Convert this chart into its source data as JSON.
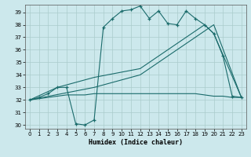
{
  "xlabel": "Humidex (Indice chaleur)",
  "bg_color": "#cce8ec",
  "grid_color": "#aacccc",
  "line_color": "#1a6b6b",
  "xlim": [
    -0.5,
    23.5
  ],
  "ylim": [
    29.7,
    39.6
  ],
  "yticks": [
    30,
    31,
    32,
    33,
    34,
    35,
    36,
    37,
    38,
    39
  ],
  "xticks": [
    0,
    1,
    2,
    3,
    4,
    5,
    6,
    7,
    8,
    9,
    10,
    11,
    12,
    13,
    14,
    15,
    16,
    17,
    18,
    19,
    20,
    21,
    22,
    23
  ],
  "s1_x": [
    0,
    1,
    2,
    3,
    4,
    5,
    6,
    7,
    8,
    9,
    10,
    11,
    12,
    13,
    14,
    15,
    16,
    17,
    18,
    19,
    20,
    21,
    22,
    23
  ],
  "s1_y": [
    32.0,
    32.2,
    32.5,
    33.0,
    33.0,
    30.1,
    30.0,
    30.4,
    37.8,
    38.5,
    39.1,
    39.2,
    39.5,
    38.5,
    39.1,
    38.1,
    38.0,
    39.1,
    38.5,
    38.0,
    37.3,
    35.5,
    32.3,
    32.2
  ],
  "s2_x": [
    0,
    3,
    7,
    12,
    19,
    20,
    23
  ],
  "s2_y": [
    32.0,
    33.0,
    33.8,
    34.5,
    38.0,
    37.3,
    32.2
  ],
  "s3_x": [
    0,
    7,
    12,
    20,
    23
  ],
  "s3_y": [
    32.0,
    33.0,
    34.0,
    38.0,
    32.2
  ],
  "s4_x": [
    0,
    1,
    2,
    3,
    4,
    5,
    6,
    7,
    8,
    9,
    10,
    11,
    12,
    13,
    14,
    15,
    16,
    17,
    18,
    19,
    20,
    21,
    22,
    23
  ],
  "s4_y": [
    32.0,
    32.1,
    32.2,
    32.3,
    32.4,
    32.4,
    32.4,
    32.5,
    32.5,
    32.5,
    32.5,
    32.5,
    32.5,
    32.5,
    32.5,
    32.5,
    32.5,
    32.5,
    32.5,
    32.4,
    32.3,
    32.3,
    32.2,
    32.2
  ]
}
